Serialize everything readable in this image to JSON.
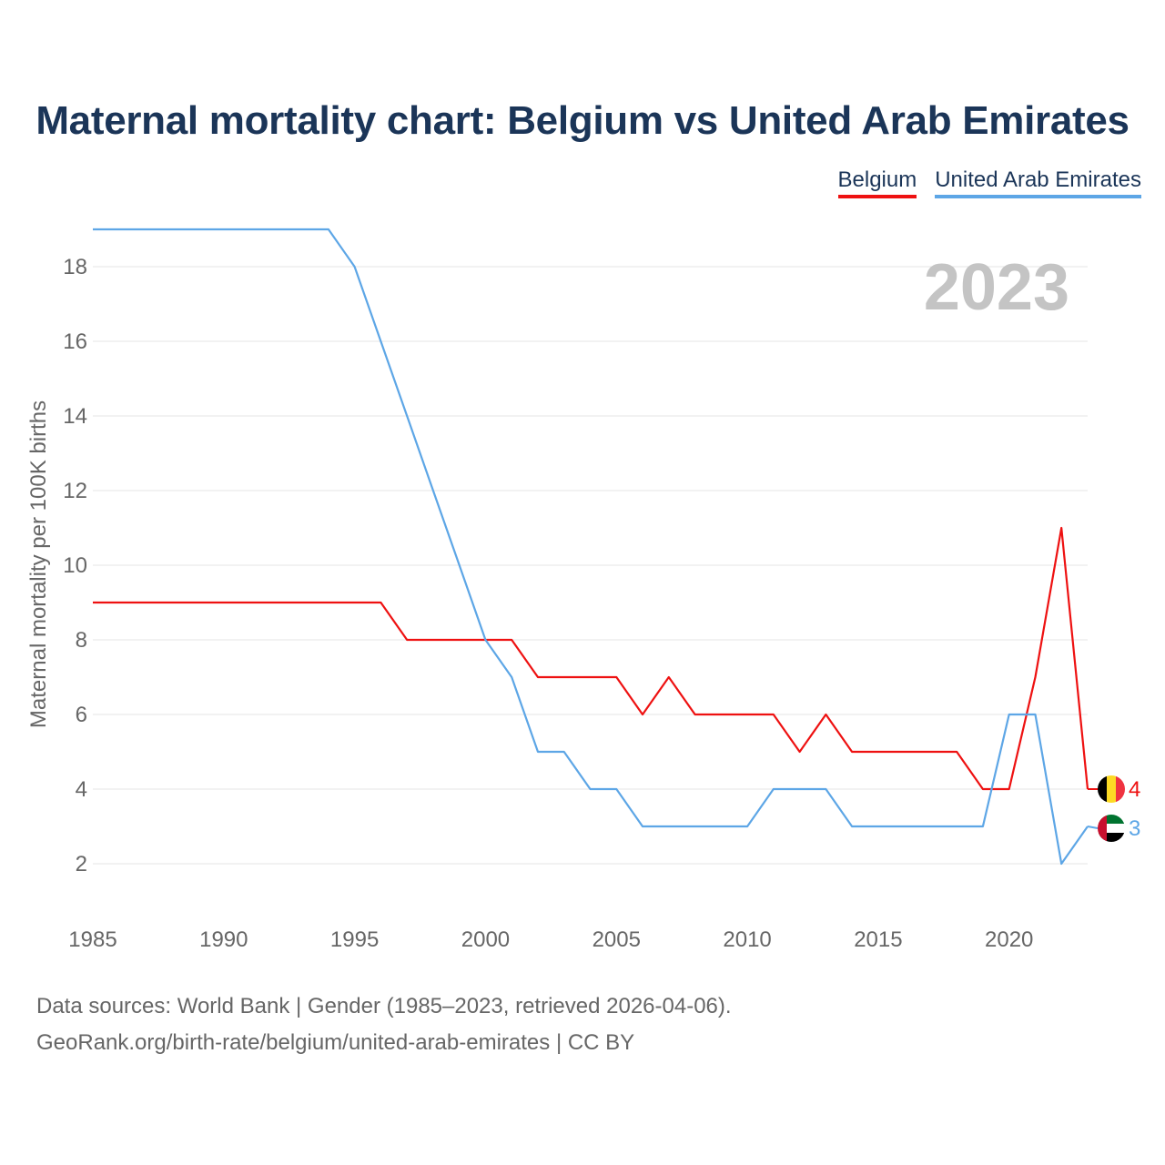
{
  "chart_data": {
    "type": "line",
    "title": "Maternal mortality chart: Belgium vs United Arab Emirates",
    "ylabel": "Maternal mortality per 100K births",
    "xlabel": "",
    "year_label": "2023",
    "xlim": [
      1985,
      2023
    ],
    "ylim": [
      1,
      19
    ],
    "x_ticks": [
      1985,
      1990,
      1995,
      2000,
      2005,
      2010,
      2015,
      2020
    ],
    "y_ticks": [
      2,
      4,
      6,
      8,
      10,
      12,
      14,
      16,
      18
    ],
    "grid": true,
    "legend_position": "top-right",
    "x": [
      1985,
      1986,
      1987,
      1988,
      1989,
      1990,
      1991,
      1992,
      1993,
      1994,
      1995,
      1996,
      1997,
      1998,
      1999,
      2000,
      2001,
      2002,
      2003,
      2004,
      2005,
      2006,
      2007,
      2008,
      2009,
      2010,
      2011,
      2012,
      2013,
      2014,
      2015,
      2016,
      2017,
      2018,
      2019,
      2020,
      2021,
      2022,
      2023
    ],
    "series": [
      {
        "name": "Belgium",
        "color": "#ee1111",
        "end_label": "4",
        "values": [
          9,
          9,
          9,
          9,
          9,
          9,
          9,
          9,
          9,
          9,
          9,
          9,
          8,
          8,
          8,
          8,
          8,
          7,
          7,
          7,
          7,
          6,
          7,
          6,
          6,
          6,
          6,
          5,
          6,
          5,
          5,
          5,
          5,
          5,
          4,
          4,
          7,
          11,
          4
        ]
      },
      {
        "name": "United Arab Emirates",
        "color": "#5da6e6",
        "end_label": "3",
        "values": [
          19,
          19,
          19,
          19,
          19,
          19,
          19,
          19,
          19,
          19,
          18,
          16,
          14,
          12,
          10,
          8,
          7,
          5,
          5,
          4,
          4,
          3,
          3,
          3,
          3,
          3,
          4,
          4,
          4,
          3,
          3,
          3,
          3,
          3,
          3,
          6,
          6,
          2,
          3
        ]
      }
    ]
  },
  "footer": {
    "line1": "Data sources: World Bank | Gender (1985–2023, retrieved 2026-04-06).",
    "line2": "GeoRank.org/birth-rate/belgium/united-arab-emirates | CC BY"
  }
}
